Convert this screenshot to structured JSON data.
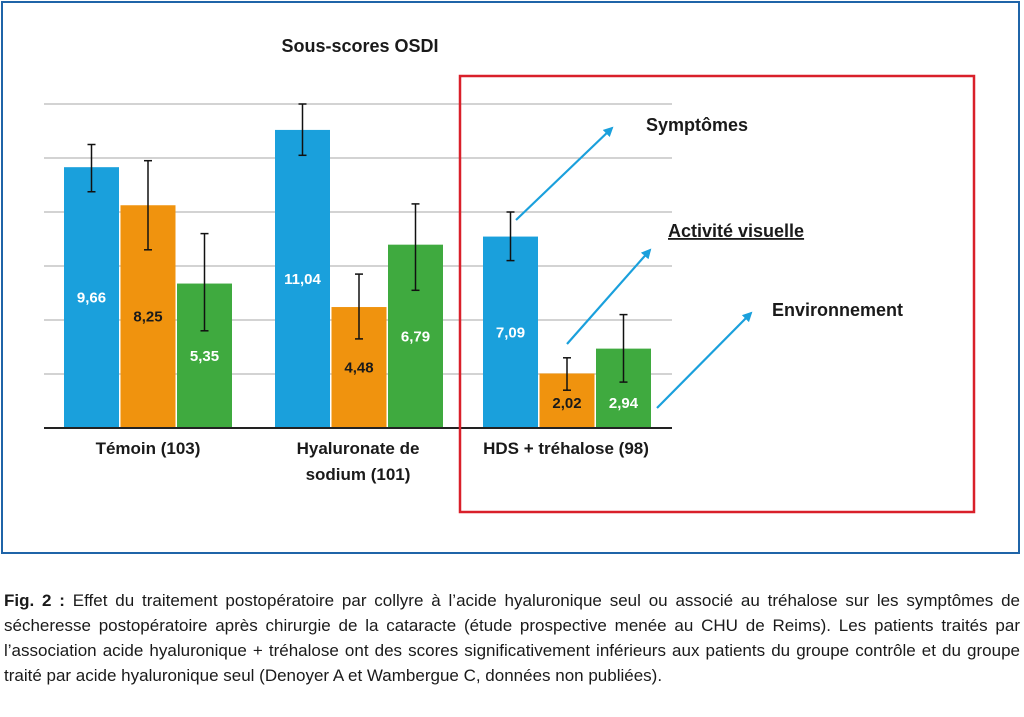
{
  "chart_data": {
    "type": "bar",
    "title": "Sous-scores OSDI",
    "categories": [
      "Témoin (103)",
      "Hyaluronate de sodium (101)",
      "HDS + tréhalose (98)"
    ],
    "categories_lines": [
      [
        "Témoin (103)"
      ],
      [
        "Hyaluronate de",
        "sodium (101)"
      ],
      [
        "HDS + tréhalose (98)"
      ]
    ],
    "series": [
      {
        "name": "Symptômes",
        "color": "#1aa0dc",
        "values": [
          9.66,
          11.04,
          7.09
        ],
        "labels": [
          "9,66",
          "11,04",
          "7,09"
        ],
        "error_low": [
          8.75,
          10.1,
          6.2
        ],
        "error_high": [
          10.5,
          12.0,
          8.0
        ]
      },
      {
        "name": "Activité visuelle",
        "color": "#f0930e",
        "values": [
          8.25,
          4.48,
          2.02
        ],
        "labels": [
          "8,25",
          "4,48",
          "2,02"
        ],
        "error_low": [
          6.6,
          3.3,
          1.4
        ],
        "error_high": [
          9.9,
          5.7,
          2.6
        ]
      },
      {
        "name": "Environnement",
        "color": "#3faa3f",
        "values": [
          5.35,
          6.79,
          2.94
        ],
        "labels": [
          "5,35",
          "6,79",
          "2,94"
        ],
        "error_low": [
          3.6,
          5.1,
          1.7
        ],
        "error_high": [
          7.2,
          8.3,
          4.2
        ]
      }
    ],
    "ylim": [
      0,
      12
    ],
    "grid": true,
    "highlight_group": "HDS + tréhalose (98)",
    "highlight_color": "#d9202a",
    "arrow_color": "#1aa0dc"
  },
  "caption": {
    "label": "Fig. 2 :",
    "text": " Effet du traitement postopératoire par collyre à l’acide hyaluronique seul ou associé au tréhalose sur les symptômes de sécheresse postopératoire après chirurgie de la cataracte (étude prospective menée au CHU de Reims). Les patients traités par l’association acide hyaluronique + tréhalose ont des scores significati­vement inférieurs aux patients du groupe contrôle et du groupe traité par acide hyaluronique seul (Denoyer A et Wambergue C, données non publiées)."
  },
  "frame_color": "#1f64a8"
}
